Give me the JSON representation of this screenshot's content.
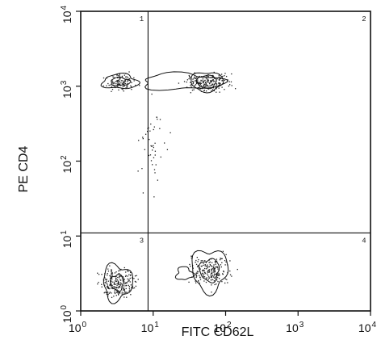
{
  "chart_data": {
    "type": "scatter",
    "subtype": "flow cytometry contour dot plot",
    "xlabel": "FITC CD62L",
    "ylabel": "PE CD4",
    "xscale": "log",
    "yscale": "log",
    "xlim": [
      1,
      10000
    ],
    "ylim": [
      1,
      10000
    ],
    "x_ticks": [
      {
        "base": "10",
        "exp": "0"
      },
      {
        "base": "10",
        "exp": "1"
      },
      {
        "base": "10",
        "exp": "2"
      },
      {
        "base": "10",
        "exp": "3"
      },
      {
        "base": "10",
        "exp": "4"
      }
    ],
    "y_ticks": [
      {
        "base": "10",
        "exp": "0"
      },
      {
        "base": "10",
        "exp": "1"
      },
      {
        "base": "10",
        "exp": "2"
      },
      {
        "base": "10",
        "exp": "3"
      },
      {
        "base": "10",
        "exp": "4"
      }
    ],
    "quadrant_gates": {
      "x": 8.5,
      "y": 11
    },
    "quadrant_labels": [
      "1",
      "2",
      "3",
      "4"
    ],
    "populations": [
      {
        "quadrant": "1",
        "center": [
          3.5,
          1150
        ],
        "description": "CD4+ CD62L-low"
      },
      {
        "quadrant": "2",
        "center": [
          55,
          1150
        ],
        "description": "CD4+ CD62L+"
      },
      {
        "quadrant": "3",
        "center": [
          3.2,
          2.4
        ],
        "description": "CD4- CD62L-"
      },
      {
        "quadrant": "4",
        "center": [
          60,
          3.5
        ],
        "description": "CD4- CD62L+"
      }
    ]
  }
}
